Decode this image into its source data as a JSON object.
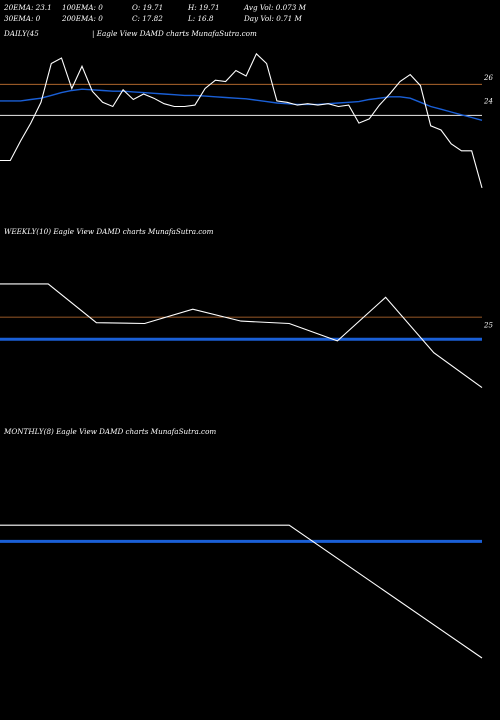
{
  "header": {
    "row1": [
      "20EMA: 23.1",
      "100EMA: 0",
      "O: 19.71",
      "H: 19.71",
      "Avg Vol: 0.073 M"
    ],
    "row2": [
      "30EMA: 0",
      "200EMA: 0",
      "C: 17.82",
      "L: 16.8",
      "Day Vol: 0.71 M"
    ]
  },
  "colors": {
    "background": "#000000",
    "price": "#ffffff",
    "ema": "#1a5fd6",
    "level": "#c87533",
    "support": "#cfcfcf"
  },
  "chart_data": [
    {
      "type": "line",
      "label": "DAILY(45",
      "subtitle": "| Eagle   View  DAMD charts MunafaSutra.com",
      "price_labels": [
        "26",
        "24"
      ],
      "price_label_values": [
        25.8,
        24.1
      ],
      "ylim": [
        15.5,
        28.5
      ],
      "level_line": 25.3,
      "support_line": 23.05,
      "ema_line": 23.7,
      "price": [
        19.8,
        19.8,
        21.2,
        22.5,
        24.0,
        26.8,
        27.2,
        25.0,
        26.6,
        24.8,
        24.0,
        23.7,
        24.9,
        24.2,
        24.6,
        24.3,
        23.9,
        23.7,
        23.7,
        23.8,
        25.0,
        25.6,
        25.5,
        26.3,
        25.9,
        27.5,
        26.8,
        24.1,
        24.0,
        23.8,
        23.9,
        23.8,
        23.9,
        23.7,
        23.8,
        22.5,
        22.8,
        23.8,
        24.6,
        25.5,
        26.0,
        25.2,
        22.3,
        22.0,
        21.0,
        20.5,
        20.5,
        17.82
      ],
      "ema": [
        24.1,
        24.1,
        24.1,
        24.2,
        24.3,
        24.5,
        24.7,
        24.85,
        24.95,
        24.9,
        24.85,
        24.8,
        24.8,
        24.75,
        24.7,
        24.65,
        24.6,
        24.55,
        24.5,
        24.5,
        24.45,
        24.4,
        24.35,
        24.3,
        24.25,
        24.15,
        24.05,
        23.95,
        23.9,
        23.85,
        23.85,
        23.85,
        23.9,
        23.95,
        24.0,
        24.05,
        24.2,
        24.3,
        24.4,
        24.4,
        24.3,
        24.0,
        23.7,
        23.5,
        23.3,
        23.1,
        22.9,
        22.7
      ]
    },
    {
      "type": "line",
      "label": "WEEKLY(10) Eagle   View  DAMD charts MunafaSutra.com",
      "price_labels": [
        "25"
      ],
      "price_label_values": [
        25.0
      ],
      "ylim": [
        13.0,
        36.0
      ],
      "level_line": 26.0,
      "ema_line": 23.2,
      "price": [
        30.2,
        30.2,
        25.3,
        25.2,
        27.0,
        25.5,
        25.2,
        23.0,
        28.5,
        21.5,
        17.1
      ],
      "ema": [
        23.2,
        23.2,
        23.2,
        23.2,
        23.2,
        23.2,
        23.2,
        23.2,
        23.2,
        23.2,
        23.2
      ]
    },
    {
      "type": "line",
      "label": "MONTHLY(8) Eagle   View  DAMD charts MunafaSutra.com",
      "price_labels": [],
      "ylim": [
        0,
        55
      ],
      "ema_line": 29.4,
      "price": [
        33.4,
        33.4,
        33.4,
        33.4,
        33.4,
        33.4,
        33.4,
        0.5
      ],
      "x_positions": [
        0,
        1,
        2,
        3,
        4,
        5,
        6,
        10
      ]
    }
  ]
}
